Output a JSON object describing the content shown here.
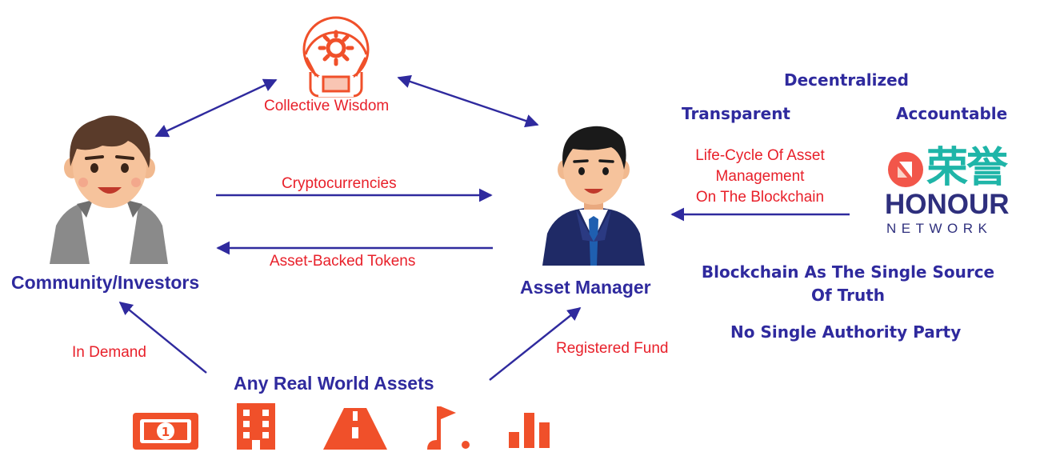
{
  "diagram": {
    "collective_wisdom": "Collective Wisdom",
    "community_label": "Community/Investors",
    "asset_manager_label": "Asset Manager",
    "cryptocurrencies": "Cryptocurrencies",
    "asset_backed_tokens": "Asset-Backed Tokens",
    "in_demand": "In Demand",
    "registered_fund": "Registered Fund",
    "any_real_world_assets": "Any Real World Assets",
    "lifecycle_line1": "Life-Cycle Of Asset",
    "lifecycle_line2": "Management",
    "lifecycle_line3": "On The Blockchain"
  },
  "properties": {
    "decentralized": "Decentralized",
    "transparent": "Transparent",
    "accountable": "Accountable",
    "single_source_line1": "Blockchain As The Single Source",
    "single_source_line2": "Of Truth",
    "no_single_authority": "No Single Authority Party"
  },
  "logo": {
    "cn_text": "荣誉",
    "name": "HONOUR",
    "sub": "NETWORK"
  },
  "asset_icons": [
    "banknote-icon",
    "building-icon",
    "road-icon",
    "golf-icon",
    "bar-chart-icon"
  ],
  "colors": {
    "primary_blue": "#2f2a9e",
    "label_red": "#e8202a",
    "icon_orange": "#f0502a",
    "logo_teal": "#1fb5a8",
    "logo_navy": "#2e2f7d"
  }
}
